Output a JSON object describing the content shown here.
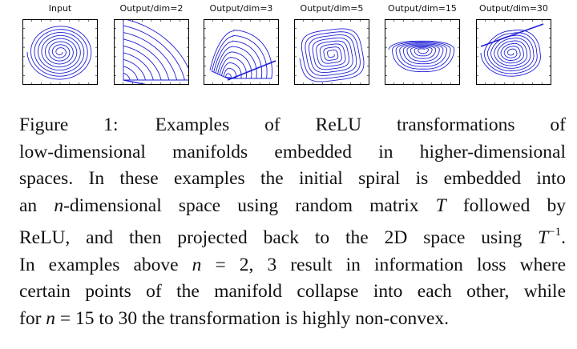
{
  "figure": {
    "panels": [
      {
        "title": "Input",
        "shape": "spiral-input"
      },
      {
        "title": "Output/dim=2",
        "shape": "fan"
      },
      {
        "title": "Output/dim=3",
        "shape": "arches"
      },
      {
        "title": "Output/dim=5",
        "shape": "rounded-square"
      },
      {
        "title": "Output/dim=15",
        "shape": "blob"
      },
      {
        "title": "Output/dim=30",
        "shape": "teardrop"
      }
    ],
    "stroke_color": "#1f1fd6",
    "caption": {
      "label": "Figure 1:",
      "line1": "Examples of ReLU transformations of",
      "line2": "low-dimensional manifolds embedded in higher-dimensional",
      "line3": "spaces.  In these examples the initial spiral is embedded into",
      "line4_a": "an",
      "line4_n": "n",
      "line4_b": "-dimensional space using random matrix",
      "line4_T": "T",
      "line4_c": "followed by",
      "line5_a": "ReLU, and then projected back to the 2D space using",
      "line5_T": "T",
      "line5_sup": "−1",
      "line5_end": ".",
      "line6_a": "In examples above",
      "line6_n": "n",
      "line6_b": "= 2, 3 result in information loss where",
      "line7": "certain points of the manifold collapse into each other, while",
      "line8_a": "for",
      "line8_n": "n",
      "line8_b": "= 15 to 30 the transformation is highly non-convex."
    }
  }
}
